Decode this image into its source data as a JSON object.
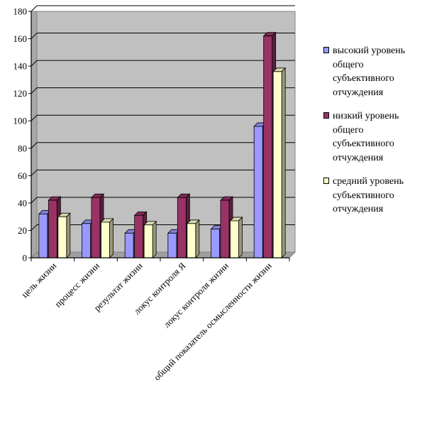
{
  "chart_data": {
    "type": "bar",
    "title": "",
    "xlabel": "",
    "ylabel": "",
    "ylim": [
      0,
      180
    ],
    "yticks": [
      0,
      20,
      40,
      60,
      80,
      100,
      120,
      140,
      160,
      180
    ],
    "grid": true,
    "legend_position": "right",
    "categories": [
      "цель жизни",
      "процесс жизни",
      "результат жизни",
      "локус контроля Я",
      "локус контроля жизни",
      "общий показатель осмысленности жизни"
    ],
    "series": [
      {
        "name": "высокий уровень общего субъективного отчуждения",
        "color": "#9999ff",
        "values": [
          32,
          25,
          18,
          18,
          21,
          96
        ]
      },
      {
        "name": "низкий уровень общего субъективного отчуждения",
        "color": "#993366",
        "values": [
          42,
          44,
          31,
          44,
          42,
          162
        ]
      },
      {
        "name": "средний уровень субъективного отчуждения",
        "color": "#ffffcc",
        "values": [
          30,
          26,
          24,
          25,
          27,
          136
        ]
      }
    ],
    "plot_background": "#c0c0c0"
  },
  "legend_lines": [
    [
      "высокий уровень",
      "общего",
      "субъективного",
      "отчуждения"
    ],
    [
      "низкий уровень",
      "общего",
      "субъективного",
      "отчуждения"
    ],
    [
      "средний уровень",
      "субъективного",
      "отчуждения"
    ]
  ]
}
